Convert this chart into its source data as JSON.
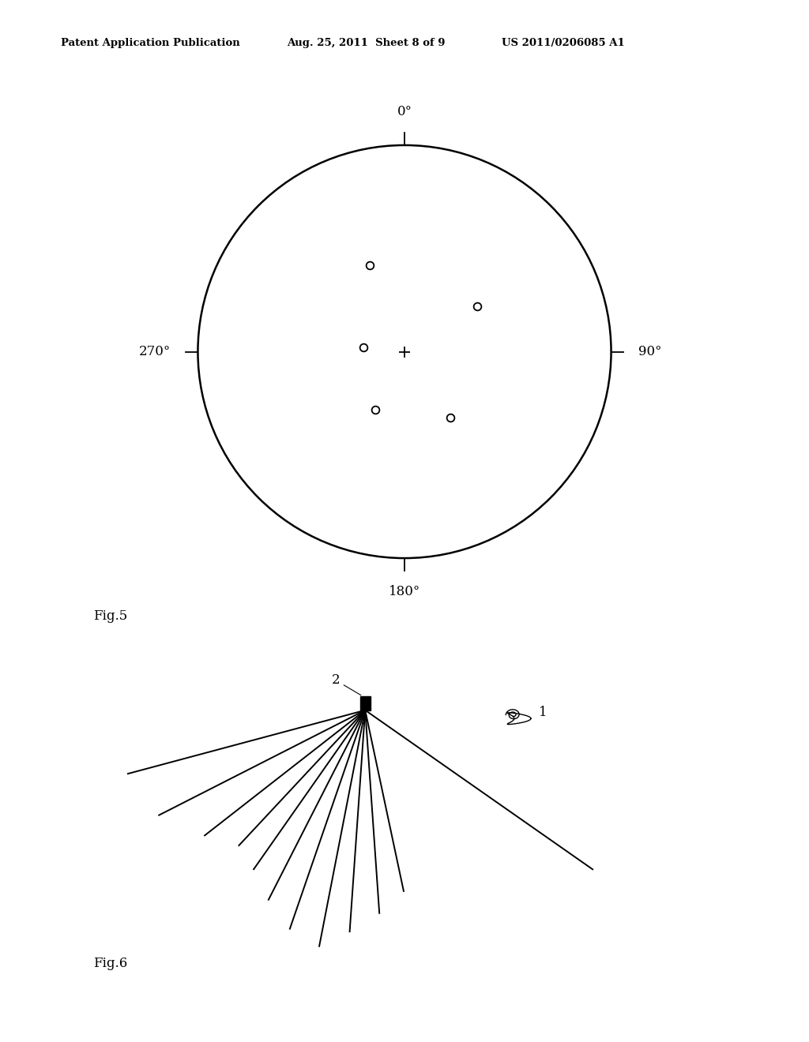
{
  "background_color": "#ffffff",
  "header_left": "Patent Application Publication",
  "header_mid": "Aug. 25, 2011  Sheet 8 of 9",
  "header_right": "US 2011/0206085 A1",
  "fig5_label": "Fig.5",
  "fig6_label": "Fig.6",
  "compass_labels_top": "0°",
  "compass_labels_right": "90°",
  "compass_labels_bottom": "180°",
  "compass_labels_left": "270°",
  "small_circles": [
    [
      -0.17,
      0.42
    ],
    [
      0.35,
      0.22
    ],
    [
      -0.2,
      0.02
    ],
    [
      -0.14,
      -0.28
    ],
    [
      0.22,
      -0.32
    ]
  ],
  "probe_angles_deg": [
    -75,
    -63,
    -52,
    -43,
    -35,
    -27,
    -19,
    -11,
    -4,
    4,
    12,
    55
  ],
  "probe_lengths": [
    0.58,
    0.5,
    0.44,
    0.4,
    0.42,
    0.46,
    0.5,
    0.52,
    0.48,
    0.44,
    0.4,
    0.6
  ]
}
